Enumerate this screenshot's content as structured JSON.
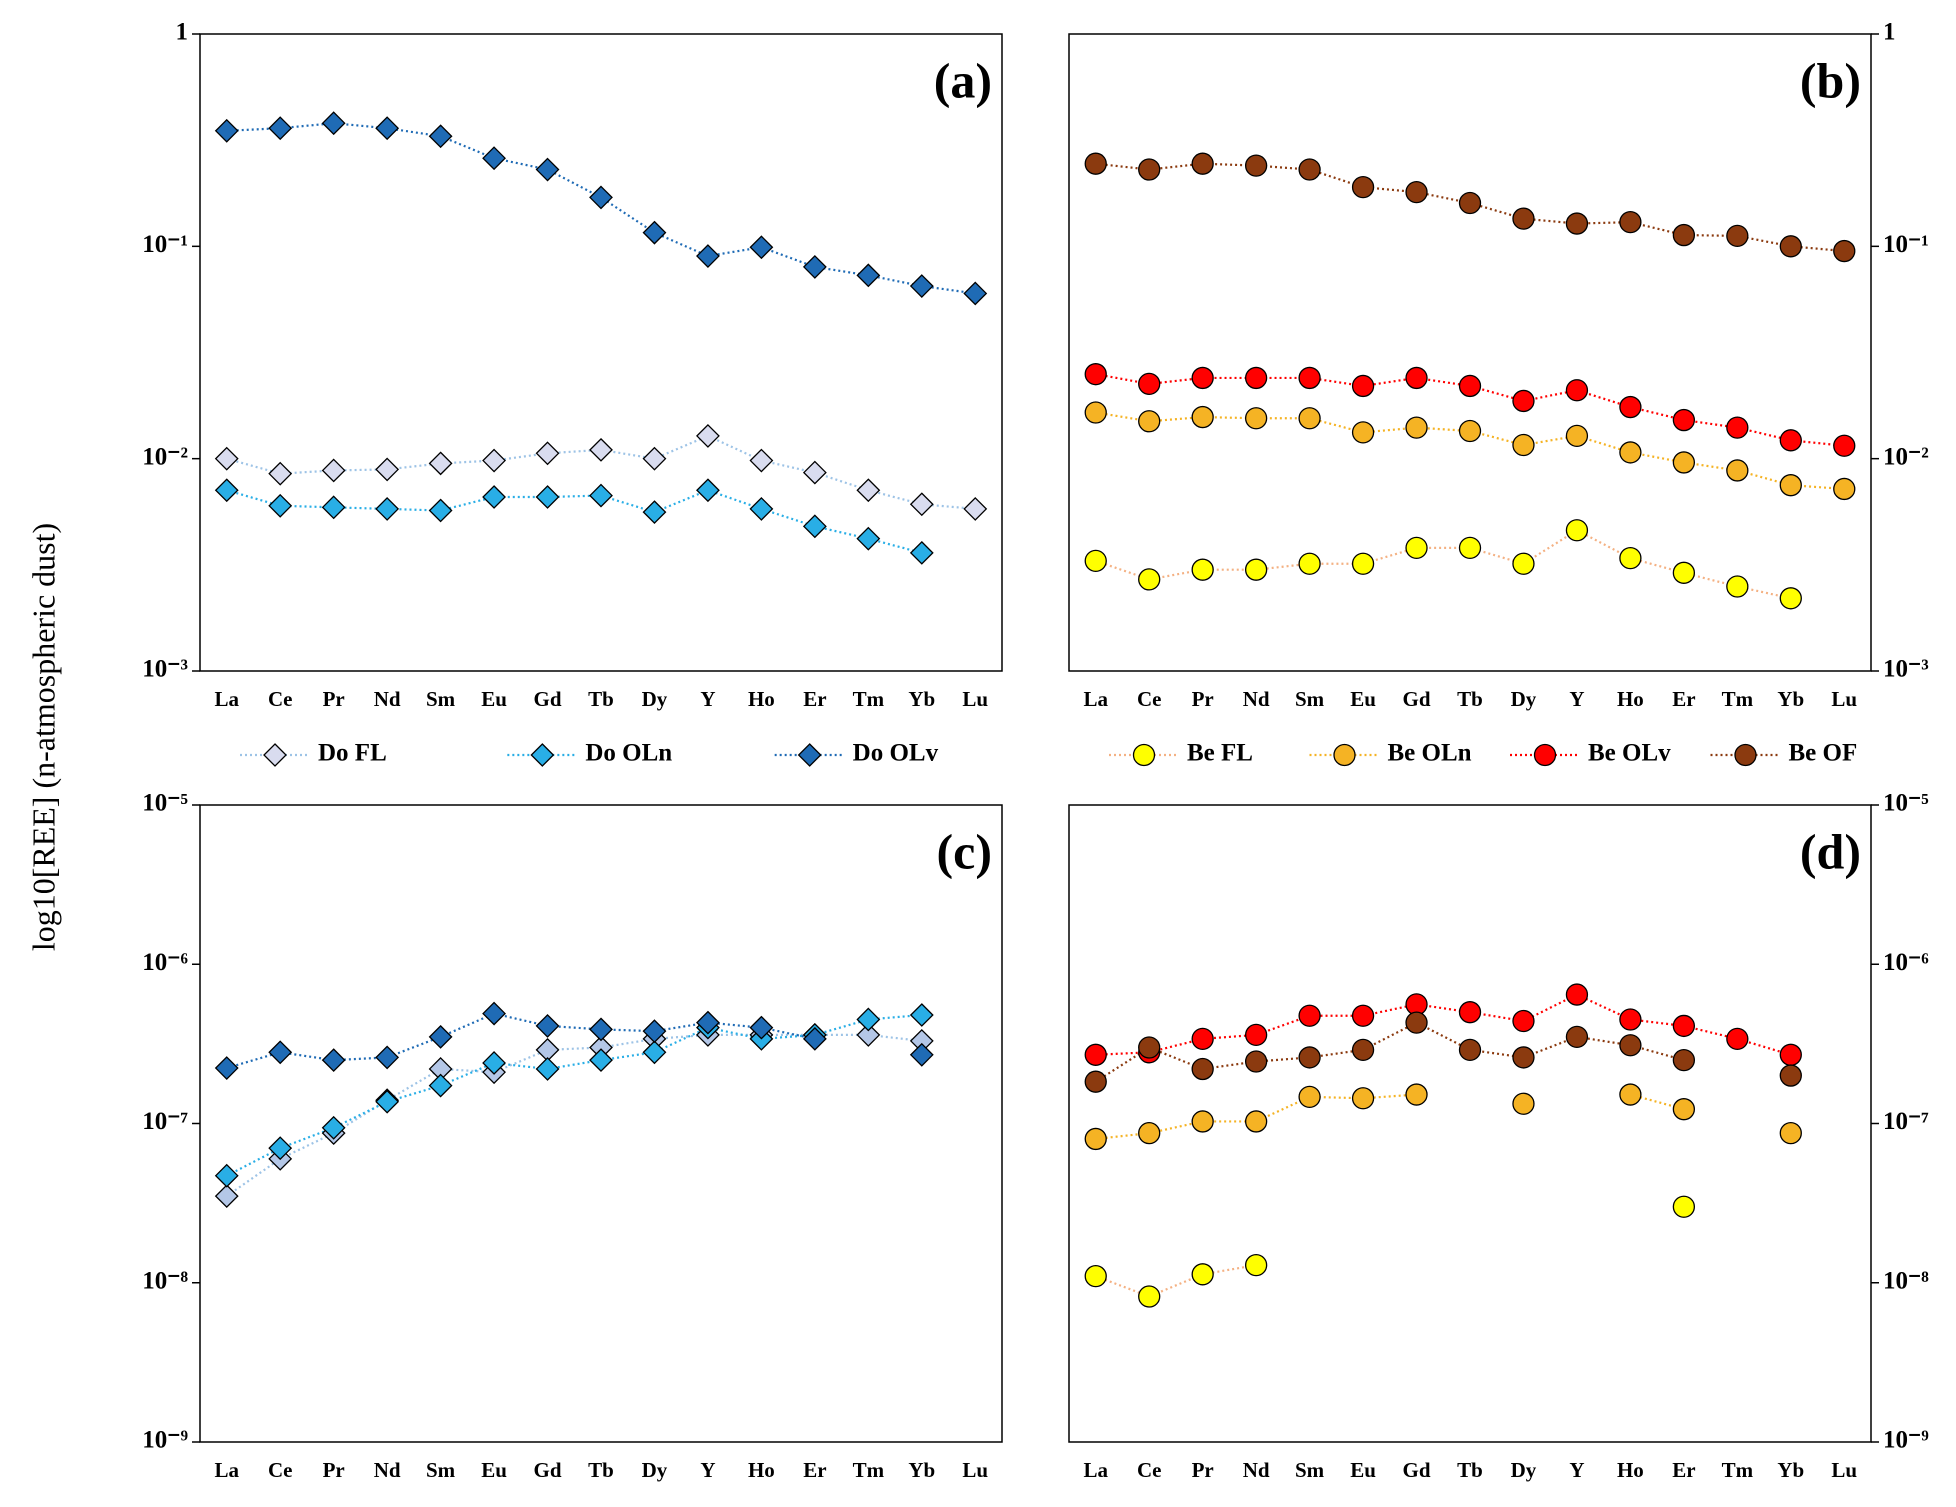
{
  "chart_data": [
    {
      "type": "line",
      "label": "(a)",
      "ylabel": "log10[REE] (n-atmospheric dust)",
      "log_scale": true,
      "y_axis_side": "left",
      "marker": "diamond",
      "legend": true,
      "categories": [
        "La",
        "Ce",
        "Pr",
        "Nd",
        "Sm",
        "Eu",
        "Gd",
        "Tb",
        "Dy",
        "Y",
        "Ho",
        "Er",
        "Tm",
        "Yb",
        "Lu"
      ],
      "ylim": [
        0.001,
        1
      ],
      "yticks": [
        1,
        {
          "value": 0.1,
          "label": "10⁻¹"
        },
        {
          "value": 0.01,
          "label": "10⁻²"
        },
        {
          "value": 0.001,
          "label": "10⁻³"
        }
      ],
      "series": [
        {
          "name": "Do FL",
          "color": "#d9dcef",
          "line_color": "#9dc3e6",
          "values": [
            0.01,
            0.0085,
            0.0088,
            0.0089,
            0.0095,
            0.0098,
            0.0106,
            0.011,
            0.01,
            0.0128,
            0.0098,
            0.0086,
            0.0071,
            0.0061,
            0.0058
          ]
        },
        {
          "name": "Do OLn",
          "color": "#29aee6",
          "values": [
            0.0071,
            0.006,
            0.0059,
            0.0058,
            0.0057,
            0.0066,
            0.0066,
            0.0067,
            0.0056,
            0.0071,
            0.0058,
            0.0048,
            0.0042,
            0.0036,
            null
          ]
        },
        {
          "name": "Do OLv",
          "color": "#1f6bb5",
          "values": [
            0.35,
            0.36,
            0.38,
            0.36,
            0.33,
            0.26,
            0.23,
            0.17,
            0.116,
            0.09,
            0.099,
            0.08,
            0.073,
            0.065,
            0.06
          ]
        }
      ]
    },
    {
      "type": "line",
      "label": "(b)",
      "log_scale": true,
      "y_axis_side": "right",
      "marker": "circle",
      "legend": true,
      "categories": [
        "La",
        "Ce",
        "Pr",
        "Nd",
        "Sm",
        "Eu",
        "Gd",
        "Tb",
        "Dy",
        "Y",
        "Ho",
        "Er",
        "Tm",
        "Yb",
        "Lu"
      ],
      "ylim": [
        0.001,
        1
      ],
      "yticks": [
        1,
        {
          "value": 0.1,
          "label": "10⁻¹"
        },
        {
          "value": 0.01,
          "label": "10⁻²"
        },
        {
          "value": 0.001,
          "label": "10⁻³"
        }
      ],
      "series": [
        {
          "name": "Be FL",
          "color": "#ffff00",
          "line_color": "#f4b183",
          "values": [
            0.0033,
            0.0027,
            0.003,
            0.003,
            0.0032,
            0.0032,
            0.0038,
            0.0038,
            0.0032,
            0.0046,
            0.0034,
            0.0029,
            0.0025,
            0.0022,
            null
          ]
        },
        {
          "name": "Be OLn",
          "color": "#f5b324",
          "values": [
            0.0165,
            0.015,
            0.0157,
            0.0155,
            0.0155,
            0.0133,
            0.014,
            0.0135,
            0.0116,
            0.0128,
            0.0107,
            0.0096,
            0.0088,
            0.0075,
            0.0072
          ]
        },
        {
          "name": "Be OLv",
          "color": "#ff0000",
          "values": [
            0.025,
            0.0225,
            0.024,
            0.024,
            0.024,
            0.022,
            0.024,
            0.022,
            0.0187,
            0.021,
            0.0175,
            0.0152,
            0.014,
            0.0122,
            0.0115
          ]
        },
        {
          "name": "Be OF",
          "color": "#8b3a0f",
          "values": [
            0.245,
            0.23,
            0.245,
            0.24,
            0.23,
            0.19,
            0.18,
            0.16,
            0.135,
            0.128,
            0.13,
            0.113,
            0.112,
            0.1,
            0.095
          ]
        }
      ]
    },
    {
      "type": "line",
      "label": "(c)",
      "log_scale": true,
      "y_axis_side": "left",
      "marker": "diamond",
      "legend": false,
      "categories": [
        "La",
        "Ce",
        "Pr",
        "Nd",
        "Sm",
        "Eu",
        "Gd",
        "Tb",
        "Dy",
        "Y",
        "Ho",
        "Er",
        "Tm",
        "Yb",
        "Lu"
      ],
      "ylim": [
        1e-09,
        1e-05
      ],
      "yticks": [
        {
          "value": 1e-05,
          "label": "10⁻⁵"
        },
        {
          "value": 1e-06,
          "label": "10⁻⁶"
        },
        {
          "value": 1e-07,
          "label": "10⁻⁷"
        },
        {
          "value": 1e-08,
          "label": "10⁻⁸"
        },
        {
          "value": 1e-09,
          "label": "10⁻⁹"
        }
      ],
      "series": [
        {
          "color": "#b4c7e7",
          "line_color": "#9dc3e6",
          "values": [
            3.5e-08,
            6e-08,
            8.7e-08,
            1.4e-07,
            2.2e-07,
            2.1e-07,
            2.9e-07,
            3e-07,
            3.4e-07,
            3.6e-07,
            3.6e-07,
            3.6e-07,
            3.6e-07,
            3.3e-07,
            null
          ]
        },
        {
          "color": "#29aee6",
          "values": [
            4.7e-08,
            7e-08,
            9.4e-08,
            1.37e-07,
            1.73e-07,
            2.4e-07,
            2.2e-07,
            2.5e-07,
            2.8e-07,
            4e-07,
            3.4e-07,
            3.6e-07,
            4.5e-07,
            4.8e-07,
            null
          ]
        },
        {
          "color": "#1f6bb5",
          "values": [
            2.23e-07,
            2.8e-07,
            2.5e-07,
            2.6e-07,
            3.5e-07,
            4.9e-07,
            4.1e-07,
            3.9e-07,
            3.8e-07,
            4.3e-07,
            4e-07,
            3.4e-07,
            null,
            2.7e-07,
            null
          ]
        }
      ]
    },
    {
      "type": "line",
      "label": "(d)",
      "log_scale": true,
      "y_axis_side": "right",
      "marker": "circle",
      "legend": false,
      "categories": [
        "La",
        "Ce",
        "Pr",
        "Nd",
        "Sm",
        "Eu",
        "Gd",
        "Tb",
        "Dy",
        "Y",
        "Ho",
        "Er",
        "Tm",
        "Yb",
        "Lu"
      ],
      "ylim": [
        1e-09,
        1e-05
      ],
      "yticks": [
        {
          "value": 1e-05,
          "label": "10⁻⁵"
        },
        {
          "value": 1e-06,
          "label": "10⁻⁶"
        },
        {
          "value": 1e-07,
          "label": "10⁻⁷"
        },
        {
          "value": 1e-08,
          "label": "10⁻⁸"
        },
        {
          "value": 1e-09,
          "label": "10⁻⁹"
        }
      ],
      "series": [
        {
          "color": "#ffff00",
          "line_color": "#f4b183",
          "values": [
            1.1e-08,
            8.2e-09,
            1.13e-08,
            1.29e-08,
            null,
            null,
            null,
            null,
            null,
            null,
            null,
            3e-08,
            null,
            null,
            null
          ]
        },
        {
          "color": "#f5b324",
          "values": [
            8e-08,
            8.7e-08,
            1.03e-07,
            1.03e-07,
            1.47e-07,
            1.44e-07,
            1.52e-07,
            null,
            1.33e-07,
            null,
            1.52e-07,
            1.23e-07,
            null,
            8.7e-08,
            null
          ]
        },
        {
          "color": "#ff0000",
          "values": [
            2.7e-07,
            2.8e-07,
            3.4e-07,
            3.6e-07,
            4.75e-07,
            4.75e-07,
            5.6e-07,
            5e-07,
            4.4e-07,
            6.45e-07,
            4.5e-07,
            4.1e-07,
            3.4e-07,
            2.7e-07,
            null
          ]
        },
        {
          "color": "#8b3a0f",
          "values": [
            1.83e-07,
            3e-07,
            2.2e-07,
            2.45e-07,
            2.6e-07,
            2.9e-07,
            4.3e-07,
            2.9e-07,
            2.6e-07,
            3.5e-07,
            3.1e-07,
            2.5e-07,
            null,
            2e-07,
            null
          ]
        }
      ]
    }
  ]
}
